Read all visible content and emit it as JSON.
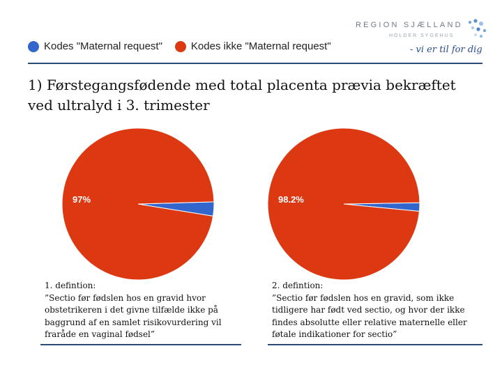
{
  "legend": [
    {
      "label": "Kodes \"Maternal request\"",
      "color": "#3366cc"
    },
    {
      "label": "Kodes ikke \"Maternal request\"",
      "color": "#dc3912"
    }
  ],
  "logo": {
    "name": "REGION SJÆLLAND",
    "sub": "HOLDER SYGEHUS",
    "slogan": "- vi er til for dig"
  },
  "title": "1) Førstegangsfødende med total placenta prævia bekræftet ved ultralyd i 3. trimester",
  "chart_data": [
    {
      "type": "pie",
      "title": "",
      "labels": [
        "Kodes \"Maternal request\"",
        "Kodes ikke \"Maternal request\""
      ],
      "values": [
        3,
        97
      ],
      "colors": [
        "#3366cc",
        "#dc3912"
      ],
      "data_labels": [
        "",
        "97%"
      ]
    },
    {
      "type": "pie",
      "title": "",
      "labels": [
        "Kodes \"Maternal request\"",
        "Kodes ikke \"Maternal request\""
      ],
      "values": [
        1.8,
        98.2
      ],
      "colors": [
        "#3366cc",
        "#dc3912"
      ],
      "data_labels": [
        "",
        "98.2%"
      ]
    }
  ],
  "captions": [
    {
      "heading": "1. defintion:",
      "body": "”Sectio før fødslen hos en gravid hvor obstetrikeren i det givne tilfælde ikke på baggrund af en samlet risikovurdering vil fraråde en vaginal fødsel”"
    },
    {
      "heading": "2. defintion:",
      "body": "”Sectio før fødslen hos en gravid, som ikke tidligere har født ved sectio, og hvor der ikke findes absolutte eller relative maternelle eller føtale indikationer for sectio”"
    }
  ]
}
